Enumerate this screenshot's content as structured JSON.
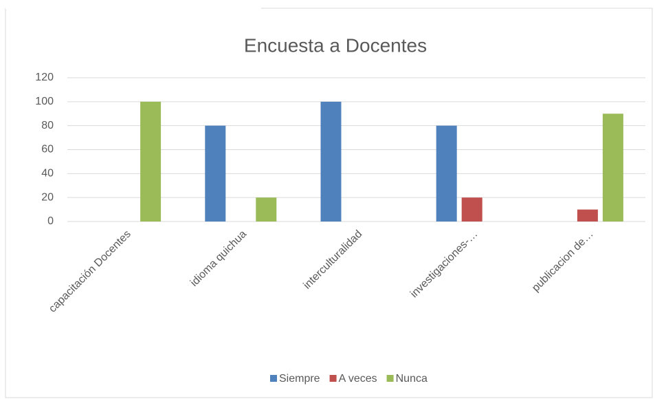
{
  "chart_data": {
    "type": "bar",
    "title": "Encuesta a Docentes",
    "categories": [
      "capacitación Docentes",
      "idioma quichua",
      "interculturalidad",
      "investigaciones-…",
      "publicacion de…"
    ],
    "series": [
      {
        "name": "Siempre",
        "color": "#4f81bd",
        "values": [
          0,
          80,
          100,
          80,
          0
        ]
      },
      {
        "name": "A veces",
        "color": "#c0504d",
        "values": [
          0,
          0,
          0,
          20,
          10
        ]
      },
      {
        "name": "Nunca",
        "color": "#9bbb59",
        "values": [
          100,
          20,
          0,
          0,
          90
        ]
      }
    ],
    "ylim": [
      0,
      120
    ],
    "yticks": [
      0,
      20,
      40,
      60,
      80,
      100,
      120
    ],
    "grid": true,
    "legend": "bottom"
  }
}
